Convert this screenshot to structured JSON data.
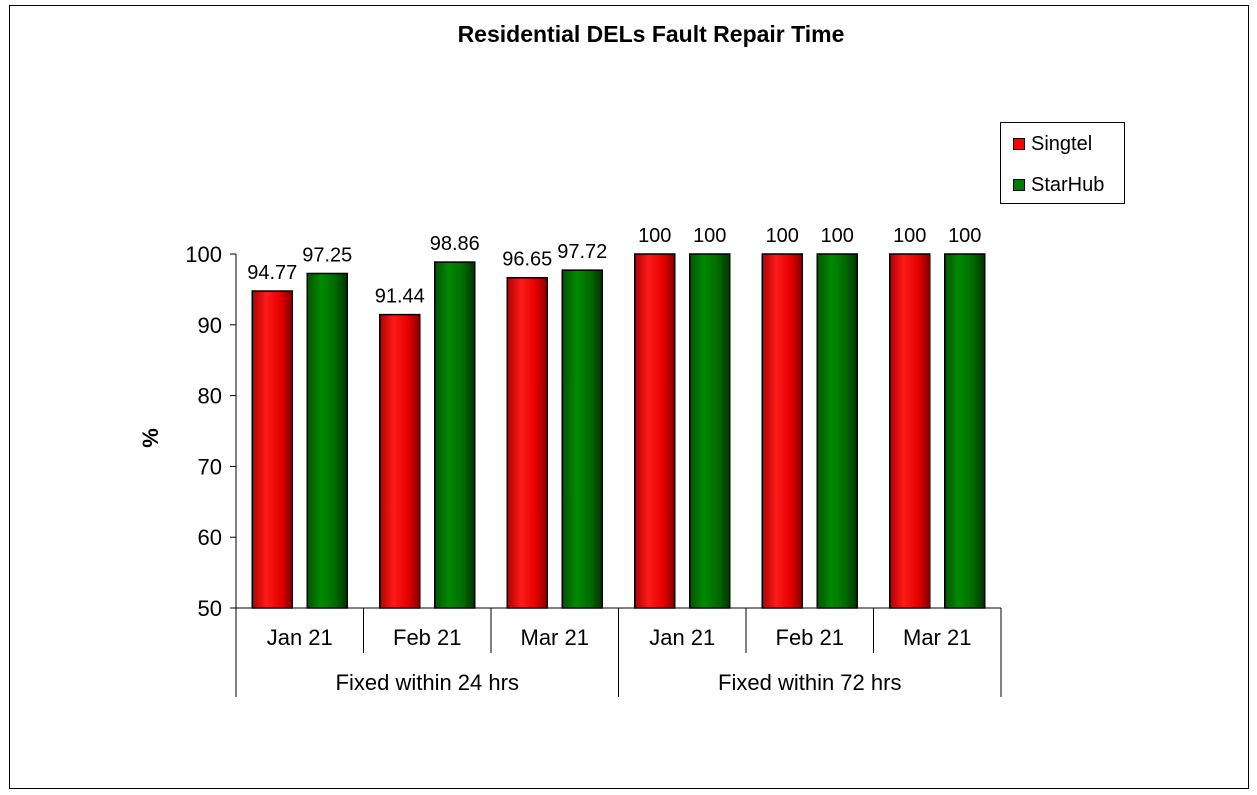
{
  "chart_data": {
    "type": "bar",
    "title": "Residential DELs Fault Repair Time",
    "ylabel": "%",
    "ylim": [
      50,
      100
    ],
    "yticks": [
      50,
      60,
      70,
      80,
      90,
      100
    ],
    "grid": false,
    "legend_position": "top-right",
    "groups": [
      {
        "label": "Fixed within 24 hrs",
        "categories": [
          "Jan 21",
          "Feb 21",
          "Mar 21"
        ]
      },
      {
        "label": "Fixed within 72 hrs",
        "categories": [
          "Jan 21",
          "Feb 21",
          "Mar 21"
        ]
      }
    ],
    "categories": [
      "Jan 21",
      "Feb 21",
      "Mar 21",
      "Jan 21",
      "Feb 21",
      "Mar 21"
    ],
    "series": [
      {
        "name": "Singtel",
        "color": "#ff0000",
        "values": [
          94.77,
          91.44,
          96.65,
          100,
          100,
          100
        ],
        "labels": [
          "94.77",
          "91.44",
          "96.65",
          "100",
          "100",
          "100"
        ]
      },
      {
        "name": "StarHub",
        "color": "#007a00",
        "values": [
          97.25,
          98.86,
          97.72,
          100,
          100,
          100
        ],
        "labels": [
          "97.25",
          "98.86",
          "97.72",
          "100",
          "100",
          "100"
        ]
      }
    ]
  }
}
